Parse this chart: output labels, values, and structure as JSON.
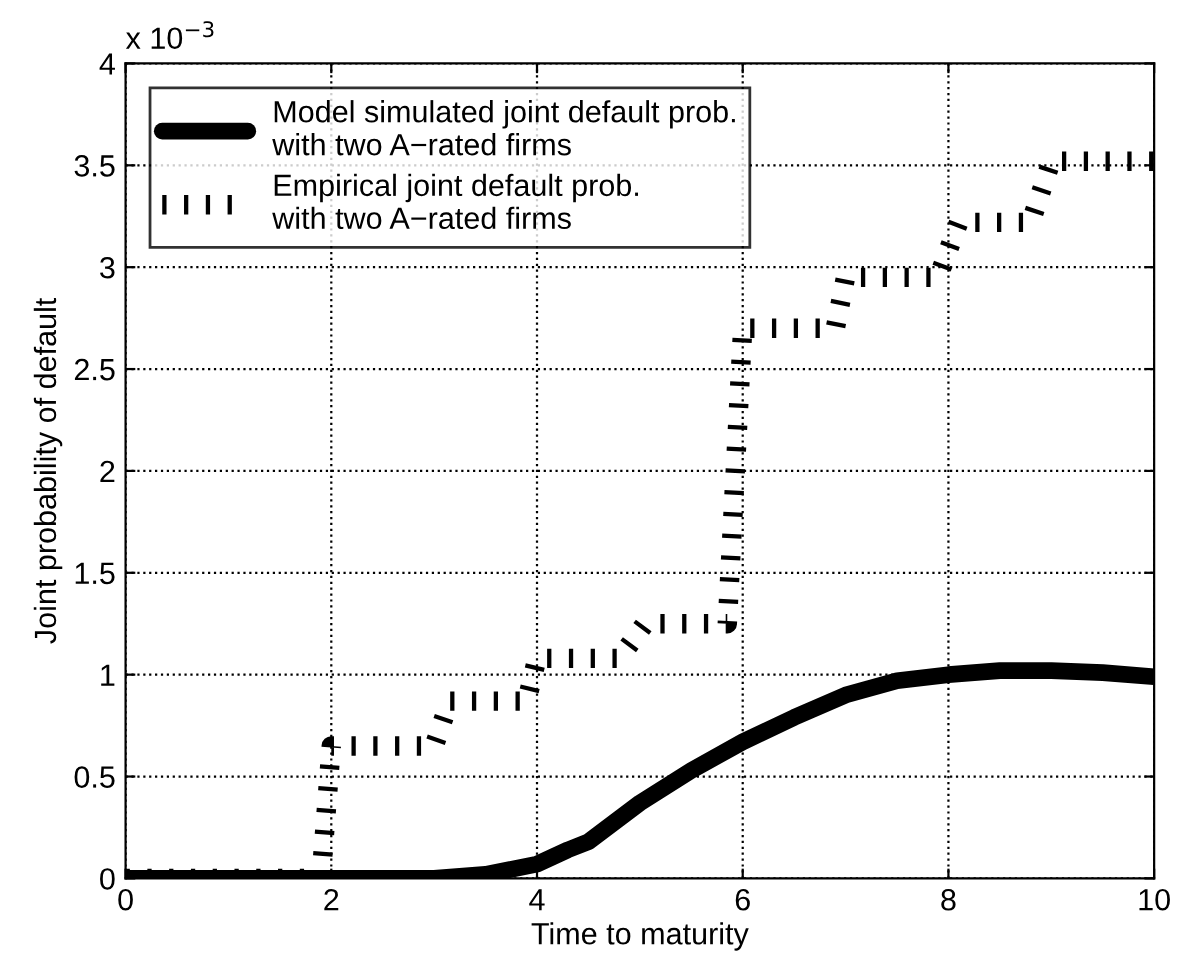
{
  "chart_data": {
    "type": "line",
    "xlabel": "Time to maturity",
    "ylabel": "Joint probability of default",
    "annotations": [
      "x 10$^{−3}$"
    ],
    "xlim": [
      0,
      10
    ],
    "xticks": [
      0,
      2,
      4,
      6,
      8,
      10
    ],
    "ylim": [
      0,
      4
    ],
    "yticks": [
      0,
      0.5,
      1,
      1.5,
      2,
      2.5,
      3,
      3.5,
      4
    ],
    "grid": true,
    "legend": "top left",
    "series": [
      {
        "name": "Model simulated joint default prob.\nwith two A−rated firms",
        "color": "#000000",
        "line_style": "solid",
        "x": [
          0,
          1,
          2,
          3,
          3.5,
          4,
          4.3,
          4.5,
          5,
          5.5,
          6,
          6.5,
          7,
          7.5,
          8,
          8.5,
          9,
          9.5,
          10
        ],
        "values": [
          0,
          0,
          0,
          0,
          0.02,
          0.07,
          0.14,
          0.18,
          0.37,
          0.53,
          0.67,
          0.79,
          0.9,
          0.97,
          1.0,
          1.02,
          1.02,
          1.01,
          0.99
        ]
      },
      {
        "name": "Empirical joint default prob.\nwith two A−rated firms",
        "color": "#000000",
        "line_style": "dotted",
        "x": [
          0,
          1.9,
          2,
          3,
          3.15,
          3.9,
          4,
          4.8,
          5.05,
          5.85,
          6,
          6.9,
          7,
          7.9,
          8.1,
          8.8,
          9,
          10
        ],
        "values": [
          0,
          0,
          0.65,
          0.65,
          0.87,
          0.87,
          1.08,
          1.08,
          1.25,
          1.25,
          2.7,
          2.7,
          2.95,
          2.95,
          3.22,
          3.22,
          3.52,
          3.52
        ]
      }
    ]
  }
}
